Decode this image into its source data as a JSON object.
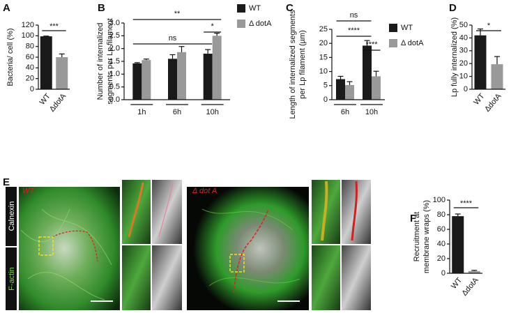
{
  "chart_data": [
    {
      "type": "bar",
      "panel": "A",
      "y_label": [
        "Bacteria/ cell (%)"
      ],
      "categories": [
        "WT",
        "ΔdotA"
      ],
      "values": [
        99,
        60
      ],
      "errors": [
        0.5,
        6
      ],
      "colors": [
        "#1a1a1a",
        "#999999"
      ],
      "ylim": [
        0,
        120
      ],
      "yticks": [
        0,
        20,
        40,
        60,
        80,
        100,
        120
      ],
      "annotations": [
        "***"
      ]
    },
    {
      "type": "bar",
      "panel": "B",
      "y_label": [
        "Number of internalized",
        "segments per Lp filament"
      ],
      "categories": [
        "1h",
        "6h",
        "10h"
      ],
      "series": [
        {
          "name": "WT",
          "color": "#1a1a1a",
          "values": [
            1.42,
            1.6,
            1.8
          ],
          "errors": [
            0.03,
            0.16,
            0.16
          ]
        },
        {
          "name": "Δ dotA",
          "color": "#999999",
          "values": [
            1.55,
            1.86,
            2.5
          ],
          "errors": [
            0.04,
            0.22,
            0.1
          ]
        }
      ],
      "ylim": [
        0,
        3.0
      ],
      "yticks": [
        {
          "value": 0,
          "label": "0.0"
        },
        0.5,
        {
          "value": 1,
          "label": "1.0"
        },
        1.5,
        {
          "value": 2,
          "label": "2.0"
        },
        2.5,
        {
          "value": 3,
          "label": "3.0"
        }
      ],
      "annotations": [
        "**",
        "ns",
        "*"
      ],
      "legend": "right"
    },
    {
      "type": "bar",
      "panel": "C",
      "y_label": [
        "Length of internalized  segments",
        "per Lp filament (µm)"
      ],
      "categories": [
        "6h",
        "10h"
      ],
      "series": [
        {
          "name": "WT",
          "color": "#1a1a1a",
          "values": [
            7.3,
            19.2
          ],
          "errors": [
            1.0,
            1.8
          ]
        },
        {
          "name": "Δ dotA",
          "color": "#999999",
          "values": [
            5.2,
            8.3
          ],
          "errors": [
            1.2,
            1.8
          ]
        }
      ],
      "ylim": [
        0,
        25
      ],
      "yticks": [
        0,
        5,
        10,
        15,
        20,
        25
      ],
      "annotations": [
        "ns",
        "****",
        "****"
      ],
      "legend": "right"
    },
    {
      "type": "bar",
      "panel": "D",
      "y_label": [
        "Lp fully internalized (%)"
      ],
      "categories": [
        "WT",
        "ΔdotA"
      ],
      "values": [
        42,
        19.5
      ],
      "errors": [
        5,
        6
      ],
      "colors": [
        "#1a1a1a",
        "#999999"
      ],
      "ylim": [
        0,
        50
      ],
      "yticks": [
        0,
        10,
        20,
        30,
        40,
        50
      ],
      "annotations": [
        "*"
      ]
    },
    {
      "type": "bar",
      "panel": "F",
      "y_label": [
        "Recruitment at",
        "membrane wraps (%)"
      ],
      "categories": [
        "WT",
        "ΔdotA"
      ],
      "values": [
        78,
        3
      ],
      "errors": [
        3,
        1
      ],
      "colors": [
        "#1a1a1a",
        "#999999"
      ],
      "ylim": [
        0,
        100
      ],
      "yticks": [
        0,
        20,
        40,
        60,
        80,
        100
      ],
      "annotations": [
        "****"
      ]
    }
  ],
  "microscopy": {
    "panel": "E",
    "channels": [
      "Calnexin",
      "F-actin"
    ],
    "images": [
      "WT",
      "Δ dot A"
    ]
  }
}
